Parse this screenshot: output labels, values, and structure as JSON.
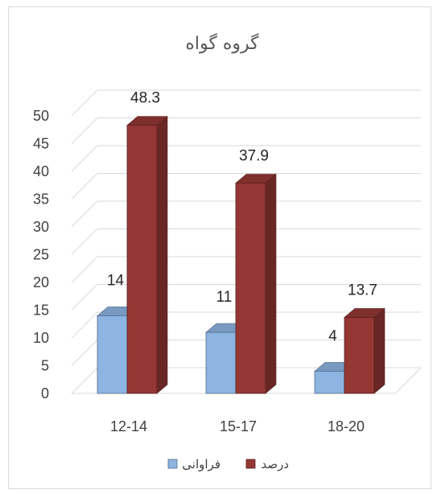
{
  "chart_data": {
    "type": "bar",
    "title": "گروه گواه",
    "xlabel": "",
    "ylabel": "",
    "categories": [
      "12-14",
      "15-17",
      "18-20"
    ],
    "series": [
      {
        "name": "فراوانی",
        "values": [
          14,
          11,
          4
        ],
        "color": "#8db4e2"
      },
      {
        "name": "درصد",
        "values": [
          48.3,
          37.9,
          13.7
        ],
        "color": "#953735"
      }
    ],
    "data_labels": [
      [
        "14",
        "11",
        "4"
      ],
      [
        "48.3",
        "37.9",
        "13.7"
      ]
    ],
    "ylim": [
      0,
      50
    ],
    "yticks": [
      0,
      5,
      10,
      15,
      20,
      25,
      30,
      35,
      40,
      45,
      50
    ],
    "grid": true,
    "style": "3d-column",
    "legend_position": "bottom"
  }
}
